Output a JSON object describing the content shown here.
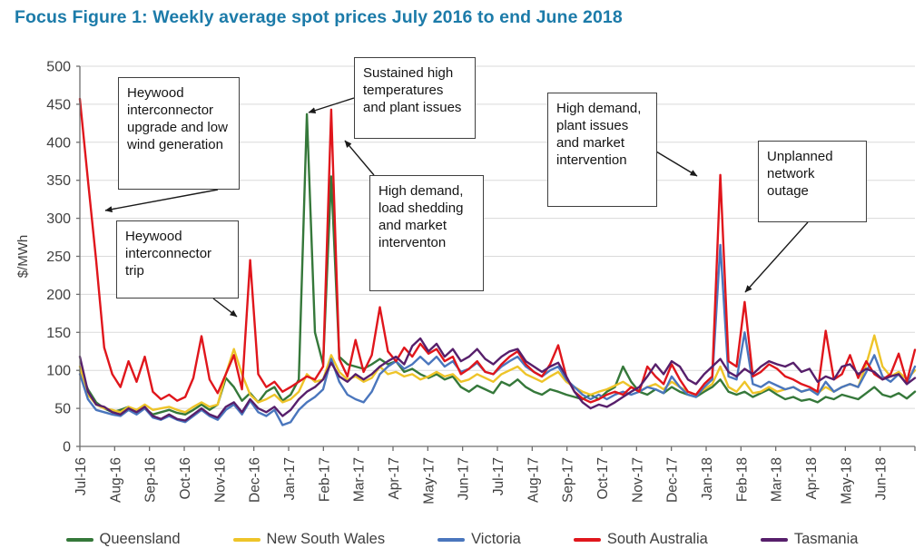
{
  "title": "Focus Figure 1: Weekly average spot prices July 2016 to end June 2018",
  "chart_data": {
    "type": "line",
    "title": "Focus Figure 1: Weekly average spot prices July 2016 to end June 2018",
    "xlabel": "",
    "ylabel": "$/MWh",
    "ylim": [
      0,
      500
    ],
    "ytick_interval": 50,
    "grid": "horizontal",
    "legend_position": "bottom",
    "x_unit": "week",
    "points_per_series": 104,
    "categories": [
      "Jul-16",
      "Aug-16",
      "Sep-16",
      "Oct-16",
      "Nov-16",
      "Dec-16",
      "Jan-17",
      "Feb-17",
      "Mar-17",
      "Apr-17",
      "May-17",
      "Jun-17",
      "Jul-17",
      "Aug-17",
      "Sep-17",
      "Oct-17",
      "Nov-17",
      "Dec-17",
      "Jan-18",
      "Feb-18",
      "Mar-18",
      "Apr-18",
      "May-18",
      "Jun-18"
    ],
    "series": [
      {
        "name": "Queensland",
        "color": "#35783a",
        "values": [
          100,
          75,
          58,
          50,
          45,
          48,
          52,
          45,
          50,
          42,
          45,
          48,
          44,
          42,
          48,
          55,
          48,
          55,
          90,
          78,
          60,
          70,
          58,
          72,
          78,
          60,
          68,
          88,
          437,
          150,
          108,
          355,
          118,
          108,
          105,
          102,
          108,
          115,
          108,
          112,
          98,
          102,
          95,
          90,
          95,
          88,
          92,
          78,
          72,
          80,
          75,
          70,
          85,
          80,
          88,
          78,
          72,
          68,
          75,
          72,
          68,
          65,
          62,
          68,
          62,
          72,
          78,
          105,
          85,
          72,
          68,
          75,
          70,
          78,
          72,
          68,
          65,
          72,
          78,
          88,
          72,
          68,
          72,
          65,
          70,
          75,
          68,
          62,
          65,
          60,
          62,
          58,
          65,
          62,
          68,
          65,
          62,
          70,
          78,
          68,
          65,
          70,
          63,
          72
        ]
      },
      {
        "name": "New South Wales",
        "color": "#eec429",
        "values": [
          105,
          68,
          55,
          50,
          48,
          45,
          52,
          48,
          55,
          48,
          50,
          52,
          48,
          45,
          52,
          58,
          52,
          55,
          95,
          128,
          95,
          68,
          58,
          62,
          68,
          58,
          62,
          72,
          95,
          85,
          88,
          120,
          98,
          88,
          92,
          85,
          90,
          105,
          95,
          98,
          92,
          95,
          88,
          92,
          98,
          92,
          95,
          85,
          88,
          95,
          90,
          85,
          95,
          100,
          105,
          95,
          90,
          85,
          92,
          98,
          85,
          78,
          72,
          68,
          72,
          75,
          80,
          85,
          78,
          72,
          78,
          82,
          75,
          85,
          78,
          72,
          68,
          75,
          82,
          105,
          78,
          72,
          85,
          70,
          72,
          78,
          72,
          75,
          78,
          72,
          75,
          70,
          78,
          72,
          78,
          82,
          78,
          108,
          146,
          105,
          92,
          98,
          88,
          100
        ]
      },
      {
        "name": "Victoria",
        "color": "#4a76bd",
        "values": [
          95,
          62,
          48,
          45,
          42,
          40,
          48,
          42,
          50,
          38,
          35,
          40,
          35,
          32,
          40,
          48,
          40,
          35,
          48,
          55,
          42,
          60,
          45,
          40,
          48,
          28,
          32,
          48,
          58,
          65,
          75,
          115,
          85,
          68,
          62,
          58,
          72,
          95,
          105,
          112,
          102,
          108,
          118,
          108,
          118,
          105,
          112,
          98,
          102,
          110,
          98,
          95,
          105,
          112,
          118,
          105,
          98,
          92,
          100,
          105,
          88,
          78,
          68,
          62,
          68,
          62,
          68,
          72,
          68,
          72,
          78,
          75,
          70,
          92,
          78,
          68,
          65,
          78,
          88,
          265,
          92,
          88,
          150,
          82,
          78,
          85,
          80,
          75,
          78,
          72,
          75,
          68,
          85,
          72,
          78,
          82,
          78,
          98,
          120,
          92,
          85,
          95,
          82,
          105
        ]
      },
      {
        "name": "South Australia",
        "color": "#e0161c",
        "values": [
          457,
          350,
          245,
          130,
          95,
          78,
          112,
          85,
          118,
          72,
          62,
          68,
          60,
          65,
          90,
          145,
          88,
          70,
          95,
          120,
          75,
          245,
          95,
          78,
          85,
          72,
          78,
          85,
          92,
          88,
          105,
          443,
          115,
          92,
          140,
          98,
          120,
          183,
          125,
          112,
          130,
          118,
          135,
          122,
          128,
          112,
          118,
          95,
          102,
          112,
          98,
          95,
          108,
          118,
          125,
          108,
          98,
          92,
          108,
          133,
          92,
          72,
          63,
          58,
          62,
          68,
          72,
          68,
          78,
          72,
          105,
          92,
          82,
          108,
          88,
          72,
          68,
          82,
          92,
          357,
          112,
          105,
          190,
          92,
          98,
          108,
          102,
          92,
          88,
          82,
          78,
          72,
          152,
          88,
          95,
          120,
          90,
          112,
          95,
          88,
          95,
          122,
          85,
          127
        ]
      },
      {
        "name": "Tasmania",
        "color": "#571f6b",
        "values": [
          118,
          72,
          55,
          52,
          45,
          42,
          50,
          45,
          52,
          40,
          36,
          42,
          36,
          34,
          42,
          50,
          42,
          38,
          52,
          58,
          45,
          62,
          50,
          45,
          52,
          40,
          48,
          62,
          72,
          78,
          88,
          110,
          92,
          85,
          95,
          88,
          95,
          105,
          112,
          118,
          108,
          132,
          142,
          125,
          135,
          118,
          128,
          112,
          118,
          128,
          115,
          108,
          118,
          125,
          128,
          112,
          105,
          98,
          105,
          110,
          92,
          72,
          58,
          50,
          55,
          52,
          58,
          65,
          72,
          78,
          92,
          108,
          95,
          112,
          105,
          88,
          82,
          95,
          105,
          115,
          98,
          92,
          102,
          95,
          105,
          112,
          108,
          105,
          110,
          98,
          102,
          85,
          92,
          88,
          105,
          108,
          95,
          102,
          98,
          88,
          92,
          95,
          82,
          90
        ]
      }
    ],
    "annotations": [
      {
        "text": "Heywood interconnector upgrade and low wind generation",
        "target": "South Australia price at start Jul-16 (~$457)"
      },
      {
        "text": "Heywood interconnector trip",
        "target": "South Australia spike early Dec-16 (~$245)"
      },
      {
        "text": "Sustained high temperatures and plant issues",
        "target": "Queensland spike mid Jan-17 (~$437)"
      },
      {
        "text": "High demand, load shedding and market interventon",
        "target": "South Australia spike early Feb-17 (~$443)"
      },
      {
        "text": "High demand, plant issues and market intervention",
        "target": "South Australia spike mid Jan-18 (~$357)"
      },
      {
        "text": "Unplanned network outage",
        "target": "South Australia spike early Feb-18 (~$190)"
      }
    ]
  }
}
